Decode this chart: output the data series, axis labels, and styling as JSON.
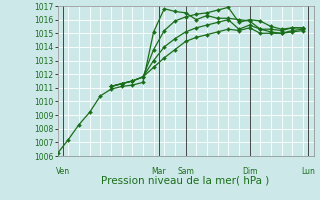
{
  "xlabel": "Pression niveau de la mer( hPa )",
  "bg_color": "#cce8e8",
  "grid_major_color": "#ffffff",
  "grid_minor_color": "#ddeedd",
  "line_color": "#1a6e1a",
  "vline_color": "#2a2a2a",
  "ylim": [
    1006,
    1017
  ],
  "yticks": [
    1006,
    1007,
    1008,
    1009,
    1010,
    1011,
    1012,
    1013,
    1014,
    1015,
    1016,
    1017
  ],
  "xlim_max": 24,
  "day_labels": [
    "Ven",
    "Mar",
    "Sam",
    "Dim",
    "Lun"
  ],
  "day_x_positions": [
    0.5,
    9.5,
    12.0,
    18.0,
    23.5
  ],
  "vline_positions": [
    0.5,
    9.5,
    12.0,
    18.0,
    23.5
  ],
  "lines": [
    {
      "x": [
        0,
        1,
        2,
        3,
        4,
        5,
        6,
        7,
        8,
        9,
        10,
        11,
        12,
        13,
        14,
        15,
        16,
        17,
        18,
        19,
        20,
        21,
        22,
        23
      ],
      "y": [
        1006.2,
        1007.2,
        1008.3,
        1009.2,
        1010.4,
        1010.9,
        1011.1,
        1011.2,
        1011.4,
        1015.1,
        1016.8,
        1016.6,
        1016.5,
        1016.0,
        1016.3,
        1016.1,
        1016.1,
        1016.0,
        1015.9,
        1015.3,
        1015.3,
        1015.2,
        1015.4,
        1015.4
      ]
    },
    {
      "x": [
        5,
        6,
        7,
        8,
        9,
        10,
        11,
        12,
        13,
        14,
        15,
        16,
        17,
        18,
        19,
        20,
        21,
        22,
        23
      ],
      "y": [
        1011.1,
        1011.3,
        1011.5,
        1011.8,
        1013.8,
        1015.2,
        1015.9,
        1016.2,
        1016.4,
        1016.5,
        1016.7,
        1016.9,
        1015.8,
        1016.0,
        1015.9,
        1015.5,
        1015.3,
        1015.4,
        1015.4
      ]
    },
    {
      "x": [
        5,
        6,
        7,
        8,
        9,
        10,
        11,
        12,
        13,
        14,
        15,
        16,
        17,
        18,
        19,
        20,
        21,
        22,
        23
      ],
      "y": [
        1011.1,
        1011.3,
        1011.5,
        1011.8,
        1013.0,
        1014.0,
        1014.6,
        1015.1,
        1015.4,
        1015.6,
        1015.8,
        1016.0,
        1015.3,
        1015.6,
        1015.3,
        1015.1,
        1015.0,
        1015.2,
        1015.3
      ]
    },
    {
      "x": [
        5,
        6,
        7,
        8,
        9,
        10,
        11,
        12,
        13,
        14,
        15,
        16,
        17,
        18,
        19,
        20,
        21,
        22,
        23
      ],
      "y": [
        1011.1,
        1011.3,
        1011.5,
        1011.8,
        1012.5,
        1013.2,
        1013.8,
        1014.4,
        1014.7,
        1014.9,
        1015.1,
        1015.3,
        1015.2,
        1015.4,
        1015.0,
        1015.0,
        1015.0,
        1015.1,
        1015.2
      ]
    }
  ],
  "tick_label_color": "#1a6e1a",
  "tick_fontsize": 5.5,
  "xlabel_fontsize": 7.5,
  "xlabel_color": "#1a6e1a",
  "marker": "D",
  "marker_size": 2.0,
  "linewidth": 0.9
}
